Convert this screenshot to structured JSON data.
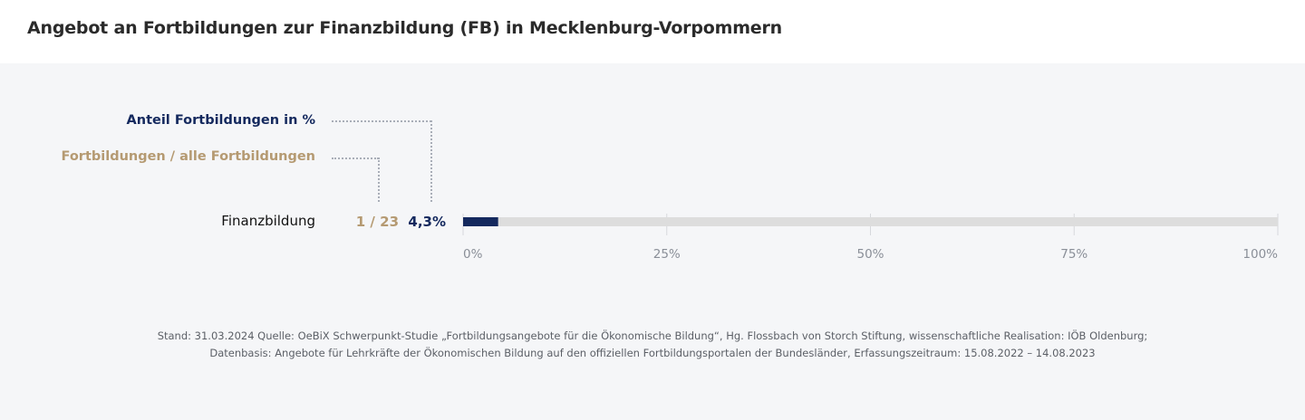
{
  "header": {
    "title": "Angebot an Fortbildungen zur Finanzbildung (FB) in Mecklenburg-Vorpommern"
  },
  "legend": {
    "percent_label": "Anteil Fortbildungen  in %",
    "count_label": "Fortbildungen / alle Fortbildungen"
  },
  "colors": {
    "percent": "#14295e",
    "count": "#b59a72",
    "track": "#dddddd",
    "background": "#f5f6f8"
  },
  "chart_data": {
    "type": "bar",
    "orientation": "horizontal",
    "categories": [
      "Finanzbildung"
    ],
    "values": [
      4.3
    ],
    "value_labels": [
      "4,3%"
    ],
    "count_labels": [
      "1 / 23"
    ],
    "xlim": [
      0,
      100
    ],
    "ticks": [
      0,
      25,
      50,
      75,
      100
    ],
    "tick_labels": [
      "0%",
      "25%",
      "50%",
      "75%",
      "100%"
    ],
    "grid": true
  },
  "footnote": {
    "line1": "Stand: 31.03.2024 Quelle: OeBiX Schwerpunkt-Studie „Fortbildungsangebote für die Ökonomische Bildung“, Hg. Flossbach von Storch Stiftung, wissenschaftliche Realisation: IÖB Oldenburg;",
    "line2": "Datenbasis: Angebote für Lehrkräfte der Ökonomischen Bildung auf den offiziellen Fortbildungsportalen der Bundesländer, Erfassungszeitraum: 15.08.2022 – 14.08.2023"
  }
}
